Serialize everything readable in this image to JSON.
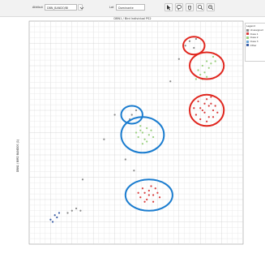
{
  "toolbar": {
    "group_label": "Attribut",
    "group_value": "DBN_BANDO/BI",
    "search_label": "Lot",
    "search_value": "Dominante",
    "tools": [
      {
        "name": "select-icon"
      },
      {
        "name": "lasso-icon"
      },
      {
        "name": "pan-icon"
      },
      {
        "name": "zoom-in-icon"
      },
      {
        "name": "zoom-out-icon"
      }
    ]
  },
  "plot": {
    "title": "DBN1 / Bird Individual PS2",
    "ylabel": "DBN1 / BIRD BANDOS (1)"
  },
  "legend": {
    "title": "Legend",
    "items": [
      {
        "label": "Unassigned",
        "color": "#8a8a8a"
      },
      {
        "label": "Class 1",
        "color": "#d93b3b"
      },
      {
        "label": "Class 2",
        "color": "#9ad07f"
      },
      {
        "label": "Class 3",
        "color": "#6aa6d8"
      },
      {
        "label": "Other",
        "color": "#3b5ea6"
      }
    ]
  },
  "chart_data": {
    "type": "scatter",
    "xlim": [
      0,
      100
    ],
    "ylim": [
      0,
      100
    ],
    "grid": true,
    "legend_position": "right",
    "series": [
      {
        "name": "Class 1",
        "color": "#d93b3b",
        "points": [
          [
            78,
            58
          ],
          [
            80,
            61
          ],
          [
            82,
            63
          ],
          [
            84,
            62
          ],
          [
            86,
            60
          ],
          [
            79,
            64
          ],
          [
            83,
            65
          ],
          [
            85,
            66
          ],
          [
            87,
            62
          ],
          [
            88,
            59
          ],
          [
            81,
            60
          ],
          [
            84,
            57
          ],
          [
            86,
            57
          ],
          [
            80,
            56
          ],
          [
            77,
            61
          ],
          [
            82,
            59
          ],
          [
            85,
            63
          ],
          [
            83,
            55
          ],
          [
            52,
            21
          ],
          [
            54,
            23
          ],
          [
            56,
            24
          ],
          [
            58,
            22
          ],
          [
            55,
            20
          ],
          [
            57,
            26
          ],
          [
            59,
            25
          ],
          [
            53,
            25
          ],
          [
            60,
            23
          ],
          [
            56,
            22
          ],
          [
            58,
            19
          ],
          [
            54,
            19
          ],
          [
            51,
            23
          ],
          [
            61,
            21
          ]
        ]
      },
      {
        "name": "Class 2",
        "color": "#9ad07f",
        "points": [
          [
            79,
            78
          ],
          [
            81,
            80
          ],
          [
            83,
            82
          ],
          [
            85,
            81
          ],
          [
            82,
            77
          ],
          [
            84,
            79
          ],
          [
            86,
            84
          ],
          [
            80,
            76
          ],
          [
            78,
            74
          ],
          [
            83,
            75
          ],
          [
            87,
            82
          ],
          [
            81,
            74
          ],
          [
            51,
            48
          ],
          [
            53,
            50
          ],
          [
            55,
            52
          ],
          [
            54,
            47
          ],
          [
            56,
            49
          ],
          [
            52,
            53
          ],
          [
            57,
            51
          ],
          [
            50,
            50
          ],
          [
            55,
            46
          ],
          [
            53,
            45
          ],
          [
            58,
            48
          ],
          [
            52,
            51
          ]
        ]
      },
      {
        "name": "Unassigned",
        "color": "#8a8a8a",
        "points": [
          [
            73,
            89
          ],
          [
            75,
            91
          ],
          [
            77,
            88
          ],
          [
            78,
            92
          ],
          [
            48,
            58
          ],
          [
            50,
            60
          ],
          [
            47,
            56
          ],
          [
            45,
            38
          ],
          [
            49,
            33
          ],
          [
            20,
            15
          ],
          [
            22,
            16
          ],
          [
            18,
            14
          ],
          [
            24,
            15
          ],
          [
            25,
            29
          ],
          [
            35,
            47
          ],
          [
            70,
            83
          ],
          [
            66,
            73
          ],
          [
            40,
            58
          ]
        ]
      },
      {
        "name": "Other",
        "color": "#3b5ea6",
        "points": [
          [
            12,
            13
          ],
          [
            13,
            12
          ],
          [
            10,
            11
          ],
          [
            14,
            14
          ],
          [
            11,
            10
          ]
        ]
      }
    ]
  },
  "annotations": {
    "red_ellipses": [
      {
        "label": "",
        "cx": 77,
        "cy": 89,
        "rx": 5,
        "ry": 4
      },
      {
        "label": "",
        "cx": 83,
        "cy": 80,
        "rx": 8,
        "ry": 6
      },
      {
        "label": "",
        "cx": 83,
        "cy": 60,
        "rx": 8,
        "ry": 7
      }
    ],
    "blue_ellipses": [
      {
        "label": "",
        "cx": 48,
        "cy": 58,
        "rx": 5,
        "ry": 4
      },
      {
        "label": "",
        "cx": 53,
        "cy": 49,
        "rx": 10,
        "ry": 8
      },
      {
        "label": "",
        "cx": 56,
        "cy": 22,
        "rx": 11,
        "ry": 7
      }
    ]
  }
}
